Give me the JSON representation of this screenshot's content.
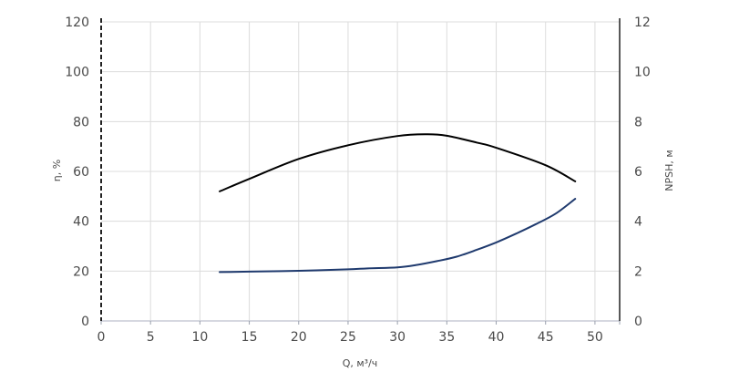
{
  "chart_data": {
    "type": "line",
    "xlabel": "Q, м³/ч",
    "ylabel_left": "η, %",
    "ylabel_right": "NPSH, м",
    "x_ticks": [
      0,
      5,
      10,
      15,
      20,
      25,
      30,
      35,
      40,
      45,
      50
    ],
    "xlim": [
      0,
      52.5
    ],
    "y_left_ticks": [
      0,
      20,
      40,
      60,
      80,
      100,
      120
    ],
    "ylim_left": [
      0,
      120
    ],
    "y_right_ticks": [
      0,
      2,
      4,
      6,
      8,
      10,
      12
    ],
    "ylim_right": [
      0,
      12
    ],
    "grid": true,
    "series": [
      {
        "axis": "left",
        "color": "#000000",
        "points": [
          [
            12,
            52
          ],
          [
            15,
            57
          ],
          [
            20,
            65
          ],
          [
            25,
            70.5
          ],
          [
            30,
            74.2
          ],
          [
            33,
            74.9
          ],
          [
            35,
            74.3
          ],
          [
            38,
            71.6
          ],
          [
            40,
            69.5
          ],
          [
            45,
            62.5
          ],
          [
            48,
            56
          ]
        ]
      },
      {
        "axis": "right",
        "color": "#1f3a6e",
        "points": [
          [
            12,
            1.96
          ],
          [
            15,
            1.98
          ],
          [
            20,
            2.01
          ],
          [
            25,
            2.07
          ],
          [
            27,
            2.11
          ],
          [
            30,
            2.15
          ],
          [
            32,
            2.25
          ],
          [
            34,
            2.4
          ],
          [
            36,
            2.58
          ],
          [
            38,
            2.85
          ],
          [
            40,
            3.15
          ],
          [
            42,
            3.5
          ],
          [
            44,
            3.88
          ],
          [
            46,
            4.3
          ],
          [
            48,
            4.9
          ]
        ]
      }
    ]
  }
}
